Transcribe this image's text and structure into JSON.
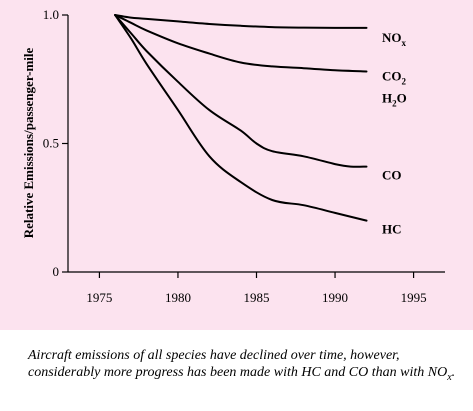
{
  "colors": {
    "panel_background": "#fce3ef",
    "line": "#000000"
  },
  "chart_data": {
    "type": "line",
    "title": "",
    "xlabel": "",
    "ylabel": "Relative Emissions/passenger-mile",
    "xlim": [
      1973,
      1997
    ],
    "ylim": [
      0,
      1.0
    ],
    "xticks": [
      1975,
      1980,
      1985,
      1990,
      1995
    ],
    "yticks": [
      0,
      0.5,
      1.0
    ],
    "ytick_labels": [
      "0",
      "0.5",
      "1.0"
    ],
    "grid": false,
    "series": [
      {
        "name": "NOx",
        "label_main": "NO",
        "label_sub": "x",
        "x": [
          1976,
          1977,
          1978,
          1980,
          1982,
          1984,
          1986,
          1988,
          1990,
          1992
        ],
        "y": [
          1.0,
          0.99,
          0.985,
          0.975,
          0.965,
          0.958,
          0.953,
          0.951,
          0.95,
          0.95
        ]
      },
      {
        "name": "CO2 H2O",
        "label_main": "CO",
        "label_sub": "2",
        "label2_main": "H",
        "label2_sub": "2",
        "label2_tail": "O",
        "x": [
          1976,
          1977,
          1978,
          1980,
          1982,
          1984,
          1986,
          1988,
          1990,
          1992
        ],
        "y": [
          1.0,
          0.97,
          0.94,
          0.89,
          0.85,
          0.815,
          0.8,
          0.793,
          0.785,
          0.78
        ]
      },
      {
        "name": "CO",
        "label_main": "CO",
        "x": [
          1976,
          1977,
          1978,
          1980,
          1982,
          1984,
          1985,
          1986,
          1988,
          1990,
          1991,
          1992
        ],
        "y": [
          1.0,
          0.93,
          0.86,
          0.74,
          0.63,
          0.55,
          0.5,
          0.47,
          0.45,
          0.42,
          0.41,
          0.41
        ]
      },
      {
        "name": "HC",
        "label_main": "HC",
        "x": [
          1976,
          1977,
          1978,
          1980,
          1982,
          1984,
          1986,
          1988,
          1990,
          1992
        ],
        "y": [
          1.0,
          0.91,
          0.81,
          0.63,
          0.45,
          0.35,
          0.28,
          0.26,
          0.23,
          0.2
        ]
      }
    ]
  },
  "caption": {
    "text": "Aircraft emissions of all species have declined over time, however, considerably more progress has been made with HC and CO than with NO",
    "sub": "x",
    "tail": "."
  }
}
